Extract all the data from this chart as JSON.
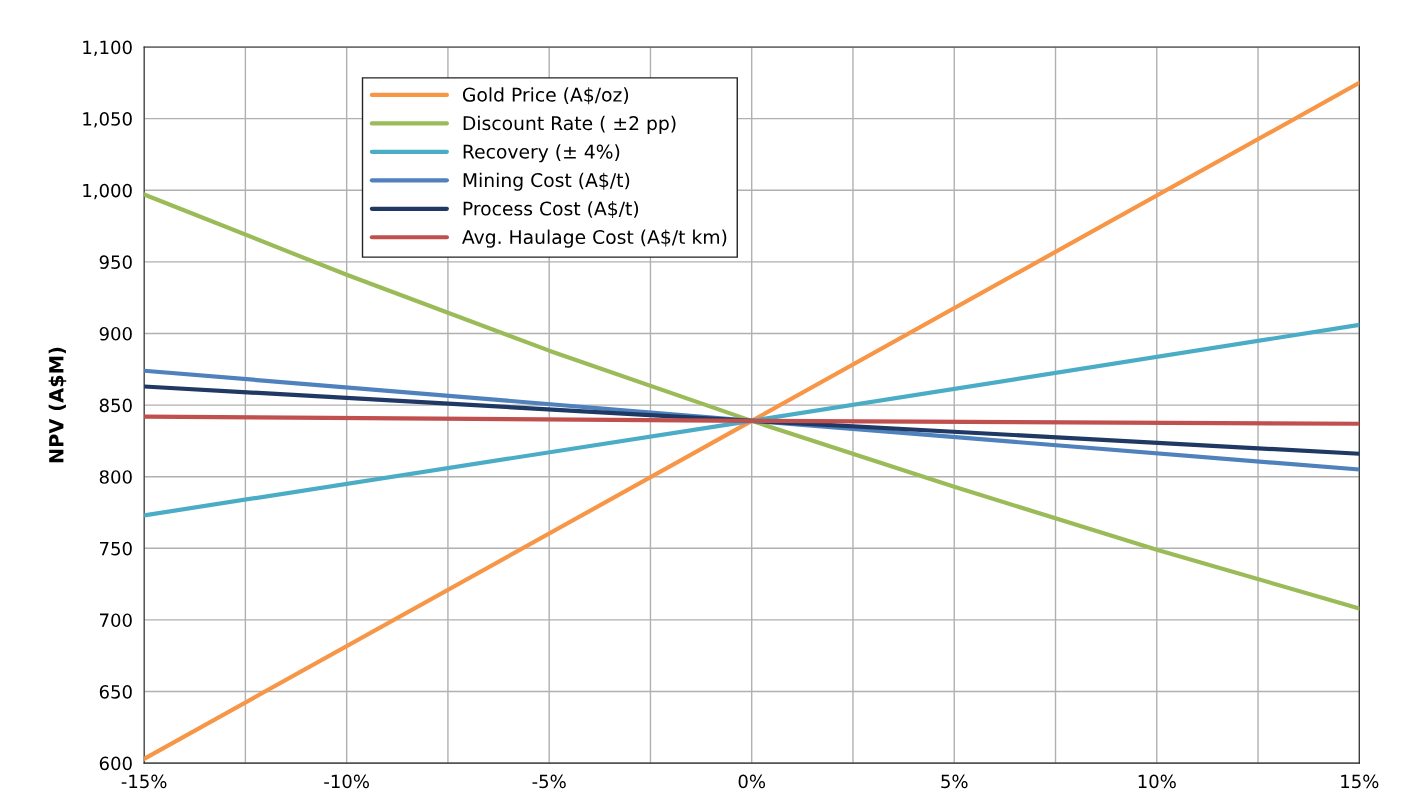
{
  "chart_data": {
    "type": "line",
    "ylabel": "NPV (A$M)",
    "x": [
      -15,
      -10,
      -5,
      0,
      5,
      10,
      15
    ],
    "series": [
      {
        "name": "Gold Price (A$/oz)",
        "color": "#f79646",
        "x": [
          -15,
          0,
          15
        ],
        "values": [
          603,
          839,
          1075
        ]
      },
      {
        "name": "Discount Rate ( ±2 pp)",
        "color": "#9bbb59",
        "values": [
          997,
          941,
          888,
          839,
          793,
          749,
          708
        ]
      },
      {
        "name": "Recovery (± 4%)",
        "color": "#4bacc6",
        "x": [
          -15,
          0,
          15
        ],
        "values": [
          773,
          839,
          906
        ]
      },
      {
        "name": "Mining Cost (A$/t)",
        "color": "#4f81bd",
        "x": [
          -15,
          0,
          15
        ],
        "values": [
          874,
          839,
          805
        ]
      },
      {
        "name": "Process Cost (A$/t)",
        "color": "#1f3864",
        "x": [
          -15,
          0,
          15
        ],
        "values": [
          863,
          839,
          816
        ]
      },
      {
        "name": "Avg. Haulage Cost (A$/t km)",
        "color": "#c0504d",
        "x": [
          -15,
          0,
          15
        ],
        "values": [
          842,
          839,
          837
        ]
      }
    ],
    "xlim": [
      -15,
      15
    ],
    "xticks": [
      {
        "value": -15,
        "label": "-15%"
      },
      {
        "value": -12.5,
        "label": null
      },
      {
        "value": -10,
        "label": "-10%"
      },
      {
        "value": -7.5,
        "label": null
      },
      {
        "value": -5,
        "label": "-5%"
      },
      {
        "value": -2.5,
        "label": null
      },
      {
        "value": 0,
        "label": "0%"
      },
      {
        "value": 2.5,
        "label": null
      },
      {
        "value": 5,
        "label": "5%"
      },
      {
        "value": 7.5,
        "label": null
      },
      {
        "value": 10,
        "label": "10%"
      },
      {
        "value": 12.5,
        "label": null
      },
      {
        "value": 15,
        "label": "15%"
      }
    ],
    "ylim": [
      600,
      1100
    ],
    "yticks": [
      600,
      650,
      700,
      750,
      800,
      850,
      900,
      950,
      {
        "value": 1000,
        "label": "1,000"
      },
      {
        "value": 1050,
        "label": "1,050"
      },
      {
        "value": 1100,
        "label": "1,100"
      }
    ],
    "grid": true,
    "legend": "top left",
    "marker": "none",
    "line_style": "solid"
  }
}
